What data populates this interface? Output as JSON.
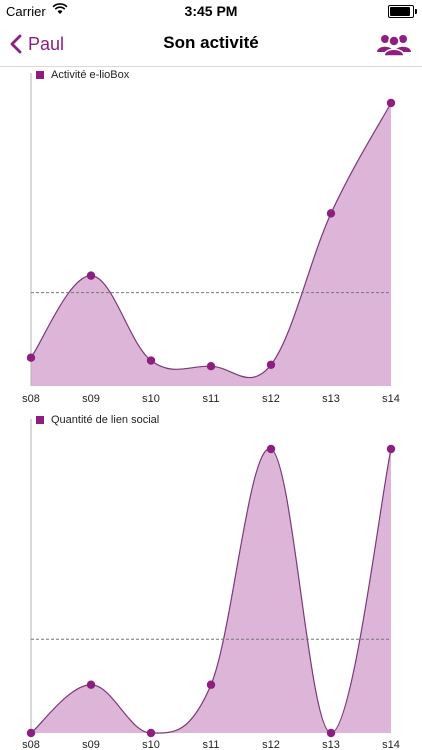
{
  "status_bar": {
    "carrier": "Carrier",
    "time": "3:45 PM"
  },
  "nav": {
    "back_label": "Paul",
    "title": "Son activité",
    "icons": {
      "back": "chevron-left-icon",
      "group": "group-icon"
    }
  },
  "colors": {
    "accent": "#8e1f80",
    "fill": "#ddb5d8",
    "stroke": "#7a3a78",
    "average_line": "#777777"
  },
  "chart_data": [
    {
      "type": "area",
      "title": "Activité e-lioBox",
      "series_name": "Activité e-lioBox",
      "categories": [
        "s08",
        "s09",
        "s10",
        "s11",
        "s12",
        "s13",
        "s14"
      ],
      "values": [
        10,
        39,
        9,
        7,
        7.5,
        61,
        100
      ],
      "ylim": [
        0,
        100
      ],
      "average": 33,
      "xlabel": "",
      "ylabel": "",
      "grid": false,
      "smooth": true,
      "legend_position": "top-left"
    },
    {
      "type": "area",
      "title": "Quantité de lien social",
      "series_name": "Quantité de lien social",
      "categories": [
        "s08",
        "s09",
        "s10",
        "s11",
        "s12",
        "s13",
        "s14"
      ],
      "values": [
        0,
        17,
        0,
        17,
        100,
        0,
        100
      ],
      "ylim": [
        0,
        100
      ],
      "average": 33,
      "xlabel": "",
      "ylabel": "",
      "grid": false,
      "smooth": true,
      "legend_position": "top-left"
    }
  ]
}
